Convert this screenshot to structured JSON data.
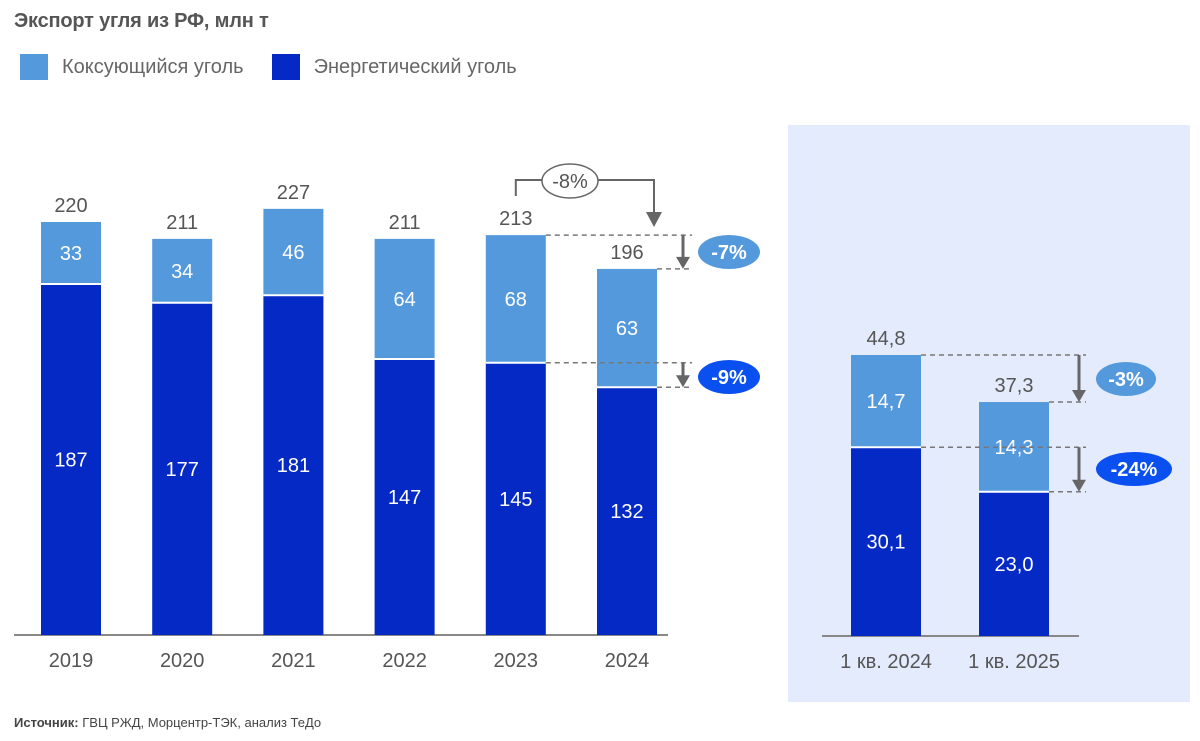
{
  "title": "Экспорт угля из РФ, млн т",
  "legend": [
    {
      "label": "Коксующийся уголь",
      "color": "#5599dd"
    },
    {
      "label": "Энергетический уголь",
      "color": "#0429c4"
    }
  ],
  "source": {
    "prefix": "Источник:",
    "text": " ГВЦ РЖД, Морцентр-ТЭК, анализ ТеДо"
  },
  "colors": {
    "coking": "#5599dd",
    "thermal": "#0429c4",
    "panel_bg": "#e3ebfd",
    "text": "#555555",
    "arrow": "#666666",
    "badge_light": "#5599dd",
    "badge_dark": "#0a4ff0"
  },
  "chart_data": [
    {
      "type": "bar",
      "stacked": true,
      "title": "Экспорт угля из РФ, млн т",
      "categories": [
        "2019",
        "2020",
        "2021",
        "2022",
        "2023",
        "2024"
      ],
      "series": [
        {
          "name": "Энергетический уголь",
          "values": [
            187,
            177,
            181,
            147,
            145,
            132
          ]
        },
        {
          "name": "Коксующийся уголь",
          "values": [
            33,
            34,
            46,
            64,
            68,
            63
          ]
        }
      ],
      "totals": [
        "220",
        "211",
        "227",
        "211",
        "213",
        "196"
      ],
      "value_labels": {
        "Энергетический уголь": [
          "187",
          "177",
          "181",
          "147",
          "145",
          "132"
        ],
        "Коксующийся уголь": [
          "33",
          "34",
          "46",
          "64",
          "68",
          "63"
        ]
      },
      "ylim": [
        0,
        230
      ],
      "annotations": [
        {
          "type": "total-change",
          "from": "2023",
          "to": "2024",
          "label": "-8%"
        },
        {
          "type": "series-change",
          "series": "Коксующийся уголь",
          "from": "2023",
          "to": "2024",
          "label": "-7%",
          "style": "light"
        },
        {
          "type": "series-change",
          "series": "Энергетический уголь",
          "from": "2023",
          "to": "2024",
          "label": "-9%",
          "style": "dark"
        }
      ]
    },
    {
      "type": "bar",
      "stacked": true,
      "categories": [
        "1 кв. 2024",
        "1 кв. 2025"
      ],
      "series": [
        {
          "name": "Энергетический уголь",
          "values": [
            30.1,
            23.0
          ]
        },
        {
          "name": "Коксующийся уголь",
          "values": [
            14.7,
            14.3
          ]
        }
      ],
      "totals": [
        "44,8",
        "37,3"
      ],
      "value_labels": {
        "Энергетический уголь": [
          "30,1",
          "23,0"
        ],
        "Коксующийся уголь": [
          "14,7",
          "14,3"
        ]
      },
      "ylim": [
        0,
        46
      ],
      "annotations": [
        {
          "type": "series-change",
          "series": "Коксующийся уголь",
          "from": "1 кв. 2024",
          "to": "1 кв. 2025",
          "label": "-3%",
          "style": "light"
        },
        {
          "type": "series-change",
          "series": "Энергетический уголь",
          "from": "1 кв. 2024",
          "to": "1 кв. 2025",
          "label": "-24%",
          "style": "dark"
        }
      ]
    }
  ]
}
